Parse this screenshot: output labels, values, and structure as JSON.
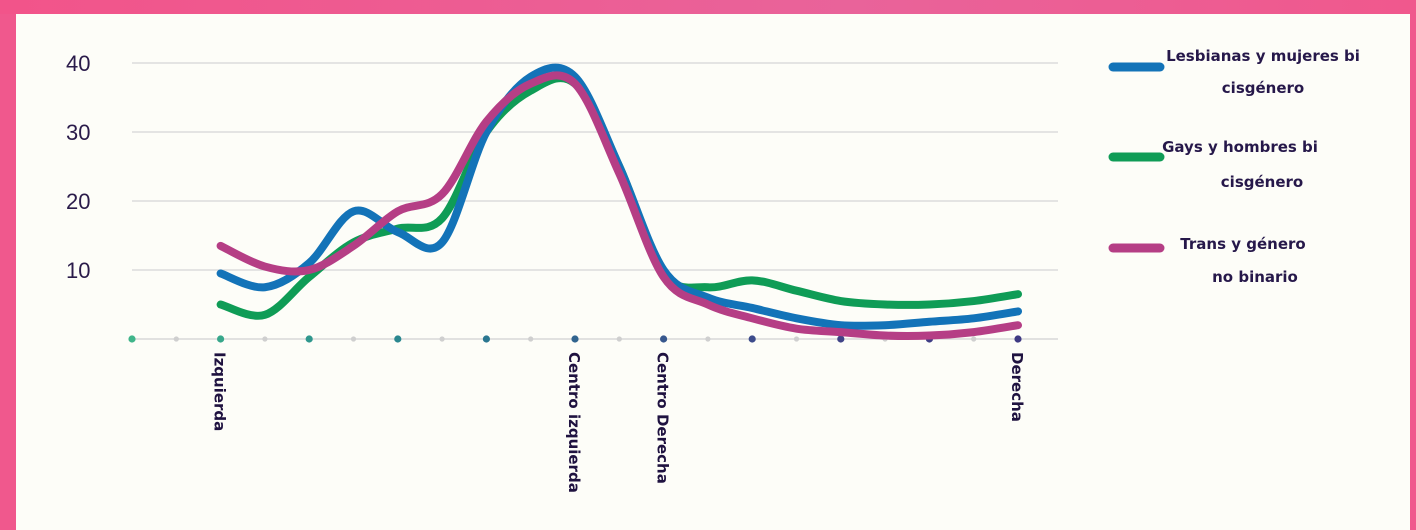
{
  "chart_data": {
    "type": "line",
    "title": "",
    "xlabel": "",
    "ylabel": "",
    "ylim": [
      0,
      40
    ],
    "yticks": [
      "10",
      "20",
      "30",
      "40"
    ],
    "x_labels": [
      {
        "label": "Izquierda",
        "x": 2
      },
      {
        "label": "Centro izquierda",
        "x": 10
      },
      {
        "label": "Centro Derecha",
        "x": 12
      },
      {
        "label": "Derecha",
        "x": 20
      }
    ],
    "grid": true,
    "legend_position": "right",
    "series": [
      {
        "name": "Lesbianas y mujeres bi cisgénero",
        "color": "#1373b8",
        "points": [
          [
            2,
            9.5
          ],
          [
            3,
            7.5
          ],
          [
            4,
            11
          ],
          [
            5,
            18.5
          ],
          [
            6,
            15.5
          ],
          [
            7,
            14
          ],
          [
            8,
            30
          ],
          [
            9,
            38
          ],
          [
            10,
            38
          ],
          [
            11,
            25
          ],
          [
            12,
            10
          ],
          [
            13,
            6
          ],
          [
            14,
            4.5
          ],
          [
            15,
            3
          ],
          [
            16,
            2
          ],
          [
            17,
            2
          ],
          [
            18,
            2.5
          ],
          [
            19,
            3
          ],
          [
            20,
            4
          ]
        ]
      },
      {
        "name": "Gays y hombres bi cisgénero",
        "color": "#0f9c56",
        "points": [
          [
            2,
            5
          ],
          [
            3,
            3.5
          ],
          [
            4,
            9
          ],
          [
            5,
            14
          ],
          [
            6,
            16
          ],
          [
            7,
            17.5
          ],
          [
            8,
            30
          ],
          [
            9,
            36
          ],
          [
            10,
            37
          ],
          [
            11,
            25
          ],
          [
            12,
            9.5
          ],
          [
            13,
            7.5
          ],
          [
            14,
            8.5
          ],
          [
            15,
            7
          ],
          [
            16,
            5.5
          ],
          [
            17,
            5
          ],
          [
            18,
            5
          ],
          [
            19,
            5.5
          ],
          [
            20,
            6.5
          ]
        ]
      },
      {
        "name": "Trans y género no binario",
        "color": "#b53e85",
        "points": [
          [
            2,
            13.5
          ],
          [
            3,
            10.5
          ],
          [
            4,
            10
          ],
          [
            5,
            13.5
          ],
          [
            6,
            18.5
          ],
          [
            7,
            21
          ],
          [
            8,
            31.5
          ],
          [
            9,
            37
          ],
          [
            10,
            37
          ],
          [
            11,
            24
          ],
          [
            12,
            9
          ],
          [
            13,
            5
          ],
          [
            14,
            3
          ],
          [
            15,
            1.5
          ],
          [
            16,
            1
          ],
          [
            17,
            0.5
          ],
          [
            18,
            0.5
          ],
          [
            19,
            1
          ],
          [
            20,
            2
          ]
        ]
      }
    ],
    "axis_dot_colors": [
      "#3fb58a",
      "#37a78b",
      "#2f978d",
      "#2a878f",
      "#2a7690",
      "#31648f",
      "#37578d",
      "#3c4b8b",
      "#404387",
      "#3f3d85",
      "#3e3983"
    ]
  }
}
